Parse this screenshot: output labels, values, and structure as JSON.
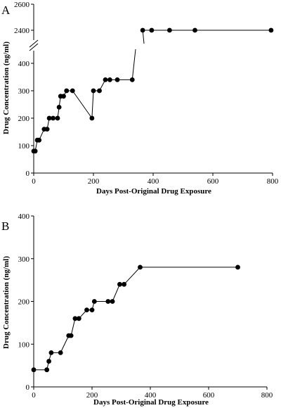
{
  "chart_data": [
    {
      "panel": "A",
      "type": "line",
      "markers": "filled-circle",
      "xlabel": "Days Post-Original Drug Exposure",
      "ylabel": "Drug Concentration (ng/ml)",
      "xlim": [
        0,
        800
      ],
      "xticks": [
        0,
        200,
        400,
        600,
        800
      ],
      "ylim_lower": [
        0,
        450
      ],
      "yticks_lower": [
        0,
        100,
        200,
        300,
        400
      ],
      "ylim_upper": [
        2350,
        2600
      ],
      "yticks_upper": [
        2400,
        2600
      ],
      "axis_break": true,
      "grid": false,
      "x": [
        0,
        5,
        12,
        18,
        35,
        45,
        52,
        65,
        80,
        85,
        90,
        100,
        110,
        130,
        195,
        200,
        220,
        240,
        255,
        280,
        330,
        365,
        395,
        455,
        540,
        795
      ],
      "y": [
        80,
        80,
        120,
        120,
        160,
        160,
        200,
        200,
        200,
        240,
        280,
        280,
        300,
        300,
        200,
        300,
        300,
        340,
        340,
        340,
        340,
        2400,
        2400,
        2400,
        2400,
        2400
      ]
    },
    {
      "panel": "B",
      "type": "line",
      "markers": "filled-circle",
      "xlabel": "Days Post-Original Drug Exposure",
      "ylabel": "Drug Concentration (ng/ml)",
      "xlim": [
        0,
        800
      ],
      "xticks": [
        0,
        200,
        400,
        600,
        800
      ],
      "ylim": [
        0,
        400
      ],
      "yticks": [
        0,
        100,
        200,
        300,
        400
      ],
      "grid": false,
      "x": [
        0,
        45,
        52,
        60,
        92,
        120,
        128,
        142,
        155,
        182,
        200,
        208,
        255,
        270,
        295,
        310,
        365,
        700
      ],
      "y": [
        40,
        40,
        60,
        80,
        80,
        120,
        120,
        160,
        160,
        180,
        180,
        200,
        200,
        200,
        240,
        240,
        280,
        280
      ]
    }
  ]
}
